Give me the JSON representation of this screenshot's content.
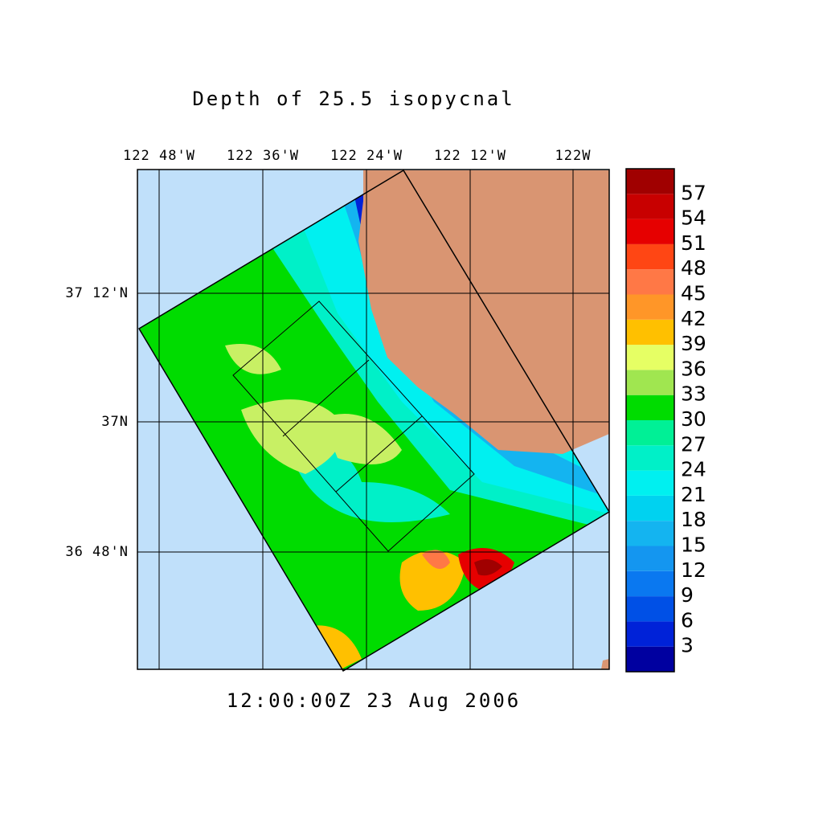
{
  "title": "Depth of 25.5 isopycnal",
  "longitude_labels": [
    "122 48'W",
    "122 36'W",
    "122 24'W",
    "122 12'W",
    "122W"
  ],
  "latitude_labels": [
    "37 12'N",
    "37N",
    "36 48'N"
  ],
  "timestamp": "12:00:00Z  23 Aug 2006",
  "colorbar": {
    "lim": [
      0,
      60
    ],
    "ticks": [
      3,
      6,
      9,
      12,
      15,
      18,
      21,
      24,
      27,
      30,
      33,
      36,
      39,
      42,
      45,
      48,
      51,
      54,
      57
    ],
    "colors": [
      "#0000a0",
      "#0022d8",
      "#0050e6",
      "#0a78f0",
      "#1496f0",
      "#14b4f0",
      "#00d2f0",
      "#00f0f0",
      "#00f0c8",
      "#00f096",
      "#00dc00",
      "#a0e650",
      "#e6ff64",
      "#ffc000",
      "#ff9628",
      "#ff7846",
      "#ff4614",
      "#e60000",
      "#c80000",
      "#a00000"
    ]
  }
}
